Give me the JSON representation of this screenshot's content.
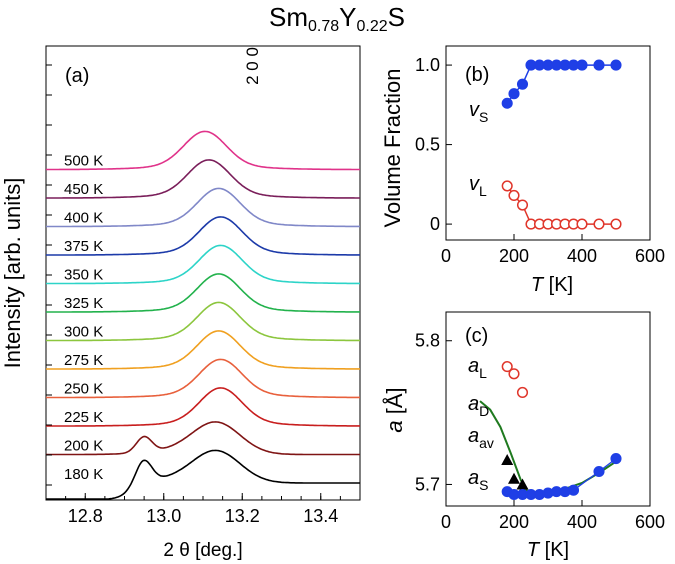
{
  "figure": {
    "title_main": "Sm",
    "title_sub1": "0.78",
    "title_mid": "Y",
    "title_sub2": "0.22",
    "title_end": "S"
  },
  "chart_data": [
    {
      "panel": "a",
      "type": "line",
      "label": "(a)",
      "peak_label": "2 0 0",
      "xlabel": "2 θ [deg.]",
      "ylabel": "Intensity [arb. units]",
      "xlim": [
        12.7,
        13.5
      ],
      "xticks": [
        12.8,
        13.0,
        13.2,
        13.4
      ],
      "xtick_labels": [
        "12.8",
        "13.0",
        "13.2",
        "13.4"
      ],
      "series": [
        {
          "name": "180 K",
          "color": "#000000",
          "offset": 0,
          "split": true
        },
        {
          "name": "200 K",
          "color": "#7f1414",
          "offset": 1,
          "split": true
        },
        {
          "name": "225 K",
          "color": "#c81e1e",
          "offset": 2,
          "peak": 13.145
        },
        {
          "name": "250 K",
          "color": "#e8603c",
          "offset": 3,
          "peak": 13.145
        },
        {
          "name": "275 K",
          "color": "#f0a020",
          "offset": 4,
          "peak": 13.14
        },
        {
          "name": "300 K",
          "color": "#8cc63e",
          "offset": 5,
          "peak": 13.14
        },
        {
          "name": "325 K",
          "color": "#22b24c",
          "offset": 6,
          "peak": 13.14
        },
        {
          "name": "350 K",
          "color": "#2dd4c8",
          "offset": 7,
          "peak": 13.145
        },
        {
          "name": "375 K",
          "color": "#1c3aa9",
          "offset": 8,
          "peak": 13.145
        },
        {
          "name": "400 K",
          "color": "#8088c8",
          "offset": 9,
          "peak": 13.14
        },
        {
          "name": "450 K",
          "color": "#7a1e5a",
          "offset": 10,
          "peak": 13.115
        },
        {
          "name": "500 K",
          "color": "#e0338a",
          "offset": 11,
          "peak": 13.105
        }
      ]
    },
    {
      "panel": "b",
      "type": "scatter",
      "label": "(b)",
      "xlabel": "T [K]",
      "ylabel": "Volume Fraction",
      "xlim": [
        0,
        600
      ],
      "ylim": [
        -0.1,
        1.12
      ],
      "xticks": [
        0,
        200,
        400,
        600
      ],
      "yticks": [
        0,
        0.5,
        1.0
      ],
      "xtick_labels": [
        "0",
        "200",
        "400",
        "600"
      ],
      "ytick_labels": [
        "0",
        "0.5",
        "1.0"
      ],
      "series": [
        {
          "name": "vS",
          "sym": "v",
          "sub": "S",
          "color": "#1f3fe6",
          "filled": true,
          "x": [
            180,
            200,
            225,
            250,
            275,
            300,
            325,
            350,
            375,
            400,
            450,
            500
          ],
          "y": [
            0.76,
            0.82,
            0.88,
            1.0,
            1.0,
            1.0,
            1.0,
            1.0,
            1.0,
            1.0,
            1.0,
            1.0
          ]
        },
        {
          "name": "vL",
          "sym": "v",
          "sub": "L",
          "color": "#e0362b",
          "filled": false,
          "x": [
            180,
            200,
            225,
            250,
            275,
            300,
            325,
            350,
            375,
            400,
            450,
            500
          ],
          "y": [
            0.24,
            0.18,
            0.12,
            0.0,
            0.0,
            0.0,
            0.0,
            0.0,
            0.0,
            0.0,
            0.0,
            0.0
          ]
        }
      ]
    },
    {
      "panel": "c",
      "type": "scatter",
      "label": "(c)",
      "xlabel": "T [K]",
      "ylabel": "a [Å]",
      "xlim": [
        0,
        600
      ],
      "ylim": [
        5.685,
        5.82
      ],
      "xticks": [
        0,
        200,
        400,
        600
      ],
      "yticks": [
        5.7,
        5.8
      ],
      "xtick_labels": [
        "0",
        "200",
        "400",
        "600"
      ],
      "ytick_labels": [
        "5.7",
        "5.8"
      ],
      "series": [
        {
          "name": "aL",
          "sym": "a",
          "sub": "L",
          "marker": "circle-open",
          "color": "#e0362b",
          "x": [
            180,
            200,
            225
          ],
          "y": [
            5.782,
            5.777,
            5.764
          ]
        },
        {
          "name": "aD",
          "sym": "a",
          "sub": "D",
          "marker": "line",
          "color": "#1f7a1f",
          "x": [
            100,
            130,
            160,
            190,
            220,
            240,
            260,
            300,
            350,
            400,
            450,
            500
          ],
          "y": [
            5.758,
            5.752,
            5.74,
            5.722,
            5.703,
            5.695,
            5.694,
            5.695,
            5.697,
            5.701,
            5.708,
            5.716
          ]
        },
        {
          "name": "aav",
          "sym": "a",
          "sub": "av",
          "marker": "triangle",
          "color": "#000000",
          "x": [
            180,
            200,
            225
          ],
          "y": [
            5.717,
            5.704,
            5.7
          ]
        },
        {
          "name": "aS",
          "sym": "a",
          "sub": "S",
          "marker": "circle-filled",
          "color": "#1f3fe6",
          "x": [
            180,
            200,
            225,
            250,
            275,
            300,
            325,
            350,
            375,
            450,
            500
          ],
          "y": [
            5.695,
            5.693,
            5.693,
            5.693,
            5.693,
            5.694,
            5.695,
            5.695,
            5.696,
            5.709,
            5.718
          ]
        }
      ]
    }
  ]
}
